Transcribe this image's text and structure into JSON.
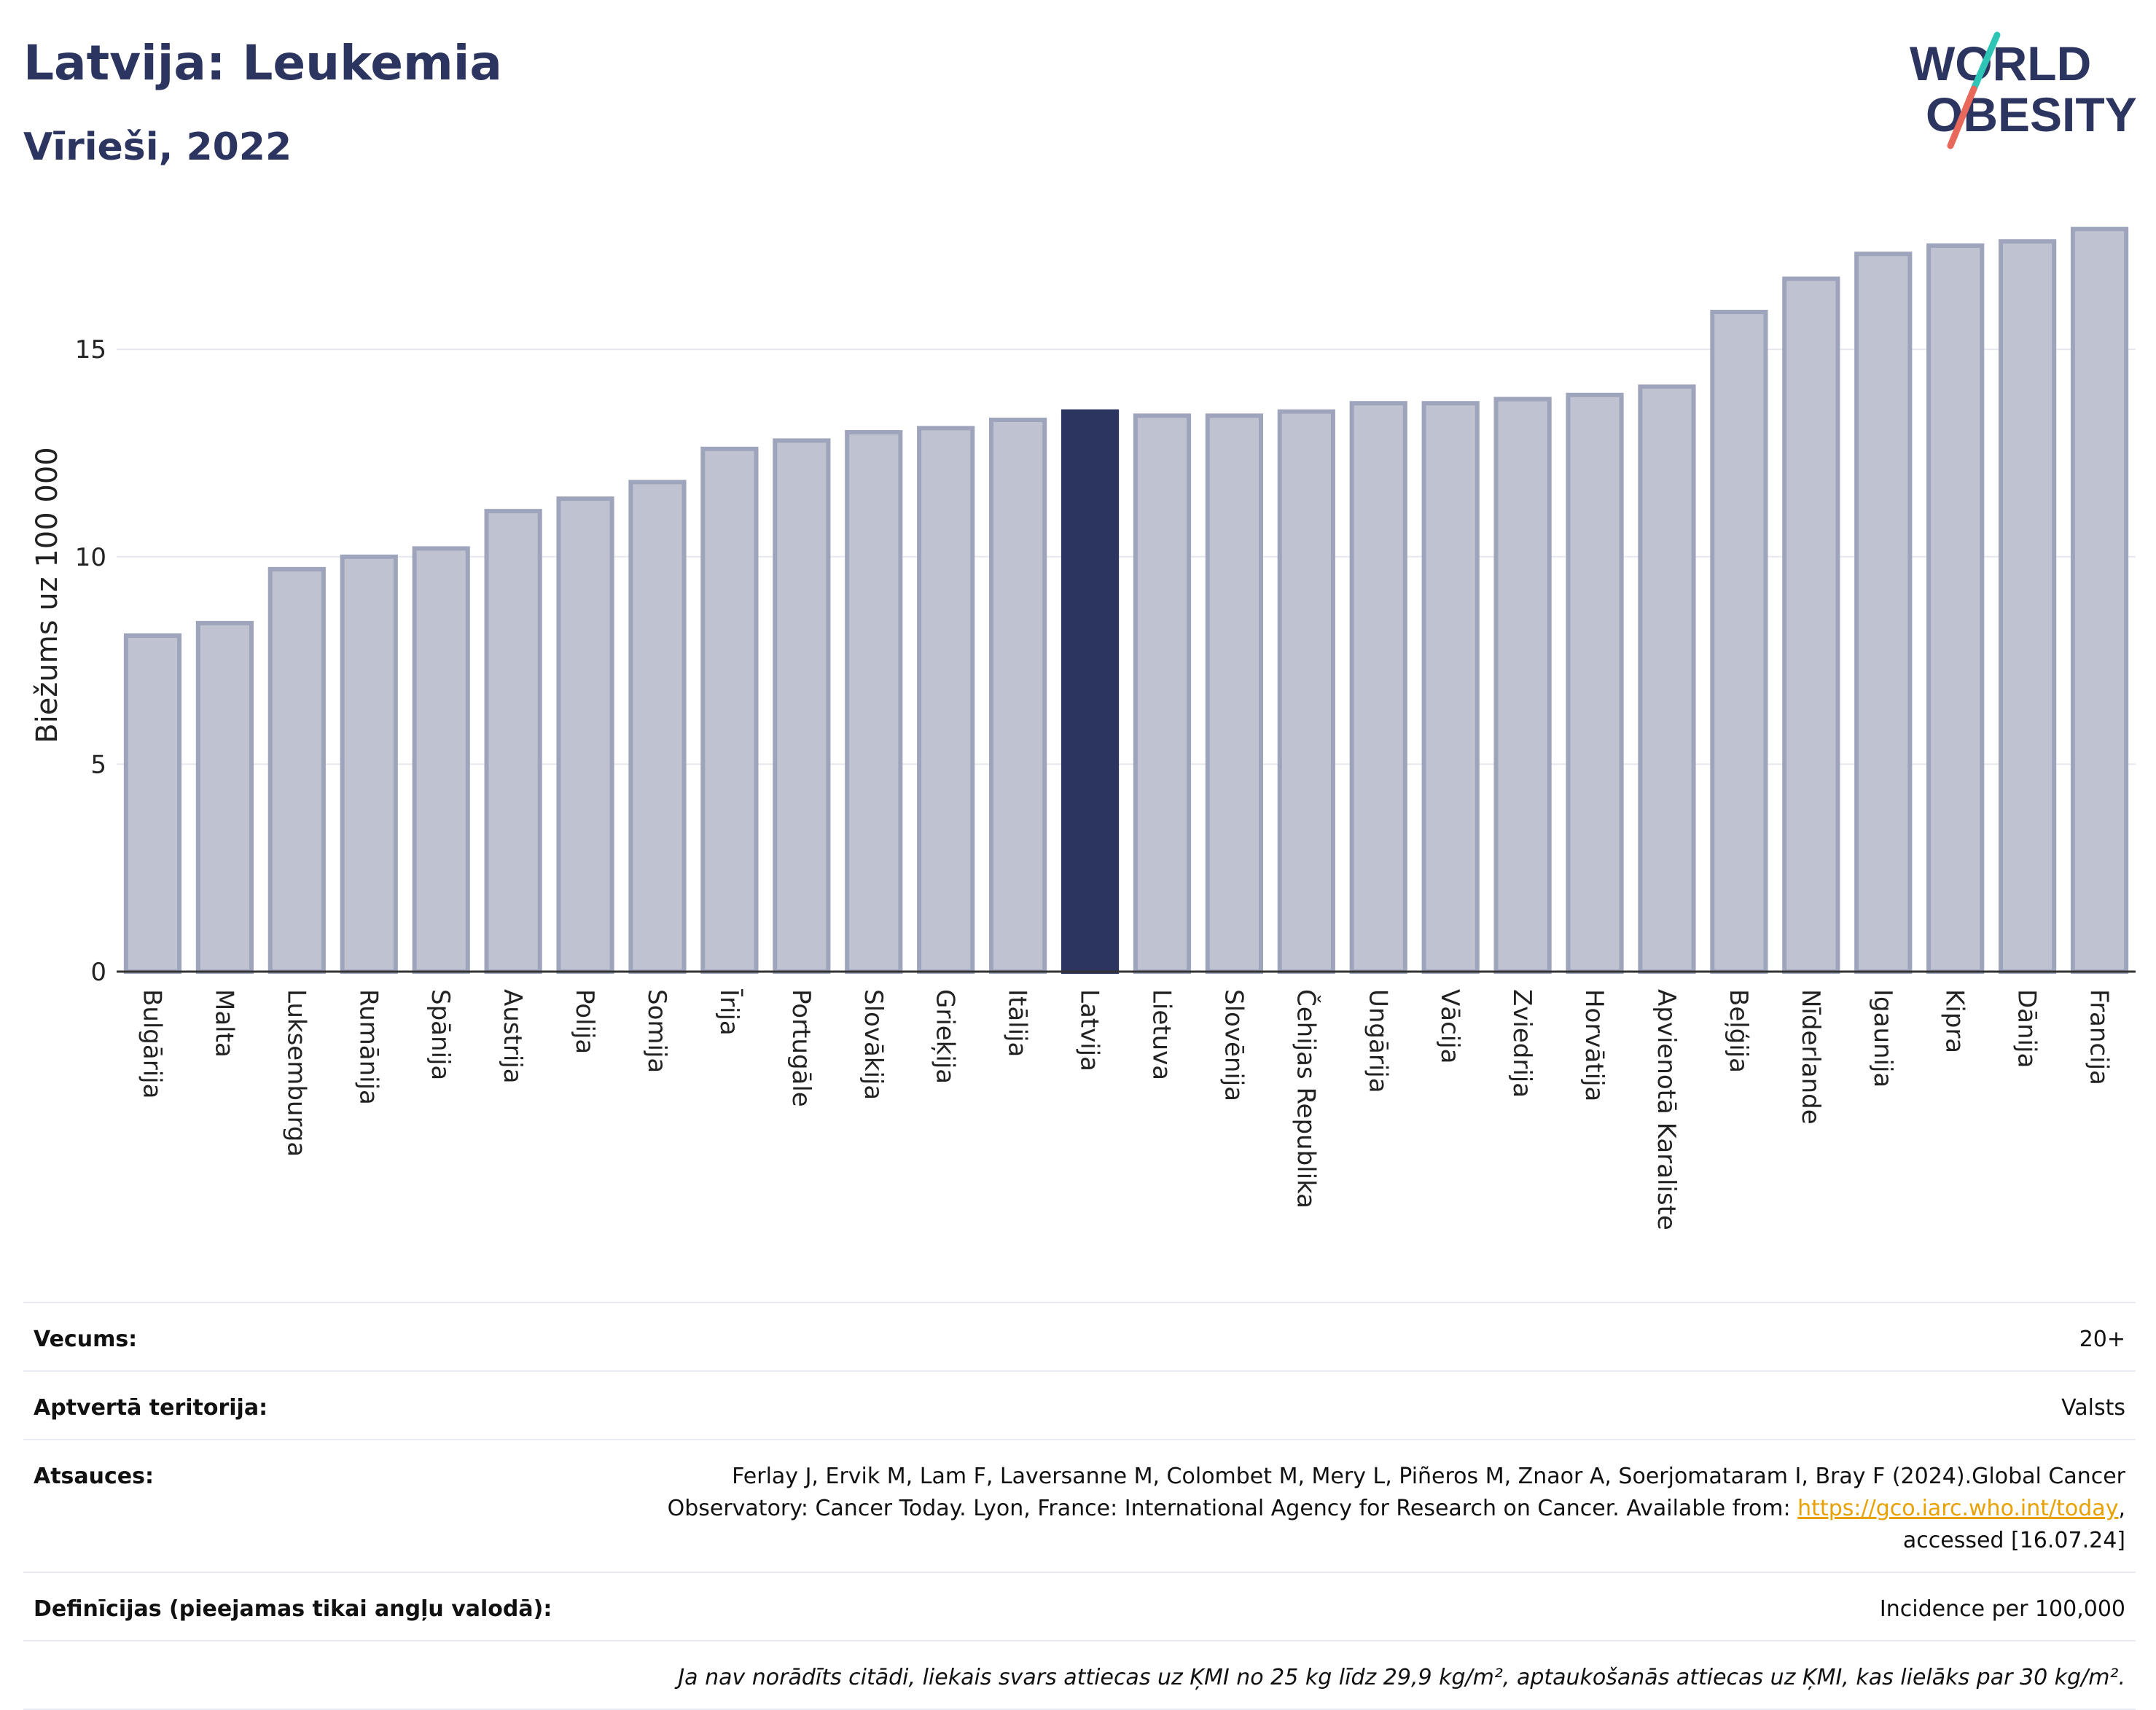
{
  "header": {
    "title": "Latvija: Leukemia",
    "subtitle": "Vīrieši, 2022"
  },
  "logo": {
    "line1": "WORLD",
    "line2": "OBESITY"
  },
  "colors": {
    "bar": "#bfc3d1",
    "bar_stroke": "#9ea4bb",
    "highlight": "#2b3560",
    "grid": "#e6e8ee",
    "logo_teal": "#2ec4b6",
    "logo_red": "#e8685b"
  },
  "chart_data": {
    "type": "bar",
    "ylabel": "Biežums uz 100 000",
    "ylim": [
      0,
      18.5
    ],
    "yticks": [
      0,
      5,
      10,
      15
    ],
    "highlight": "Latvija",
    "categories": [
      "Bulgārija",
      "Malta",
      "Luksemburga",
      "Rumānija",
      "Spānija",
      "Austrija",
      "Polija",
      "Somija",
      "Īrija",
      "Portugāle",
      "Slovākija",
      "Grieķija",
      "Itālija",
      "Latvija",
      "Lietuva",
      "Slovēnija",
      "Čehijas Republika",
      "Ungārija",
      "Vācija",
      "Zviedrija",
      "Horvātija",
      "Apvienotā Karaliste",
      "Beļģija",
      "Nīderlande",
      "Igaunija",
      "Kipra",
      "Dānija",
      "Francija"
    ],
    "values": [
      8.1,
      8.4,
      9.7,
      10.0,
      10.2,
      11.1,
      11.4,
      11.8,
      12.6,
      12.8,
      13.0,
      13.1,
      13.3,
      13.5,
      13.4,
      13.4,
      13.5,
      13.7,
      13.7,
      13.8,
      13.9,
      14.1,
      15.9,
      16.7,
      17.3,
      17.5,
      17.6,
      17.9
    ]
  },
  "info": {
    "age_label": "Vecums:",
    "age_value": "20+",
    "territory_label": "Aptvertā teritorija:",
    "territory_value": "Valsts",
    "refs_label": "Atsauces:",
    "refs_text_1": "Ferlay J, Ervik M, Lam F, Laversanne M, Colombet M, Mery L, Piñeros M, Znaor A, Soerjomataram I, Bray F (2024).Global Cancer",
    "refs_text_2": "Observatory: Cancer Today. Lyon, France: International Agency for Research on Cancer. Available from: ",
    "refs_link": "https://gco.iarc.who.int/today",
    "refs_text_3": ",",
    "refs_text_4": "accessed [16.07.24]",
    "def_label": "Definīcijas (pieejamas tikai angļu valodā):",
    "def_value": "Incidence per 100,000",
    "note": "Ja nav norādīts citādi, liekais svars attiecas uz ĶMI no 25 kg līdz 29,9 kg/m², aptaukošanās attiecas uz ĶMI, kas lielāks par 30 kg/m²."
  }
}
